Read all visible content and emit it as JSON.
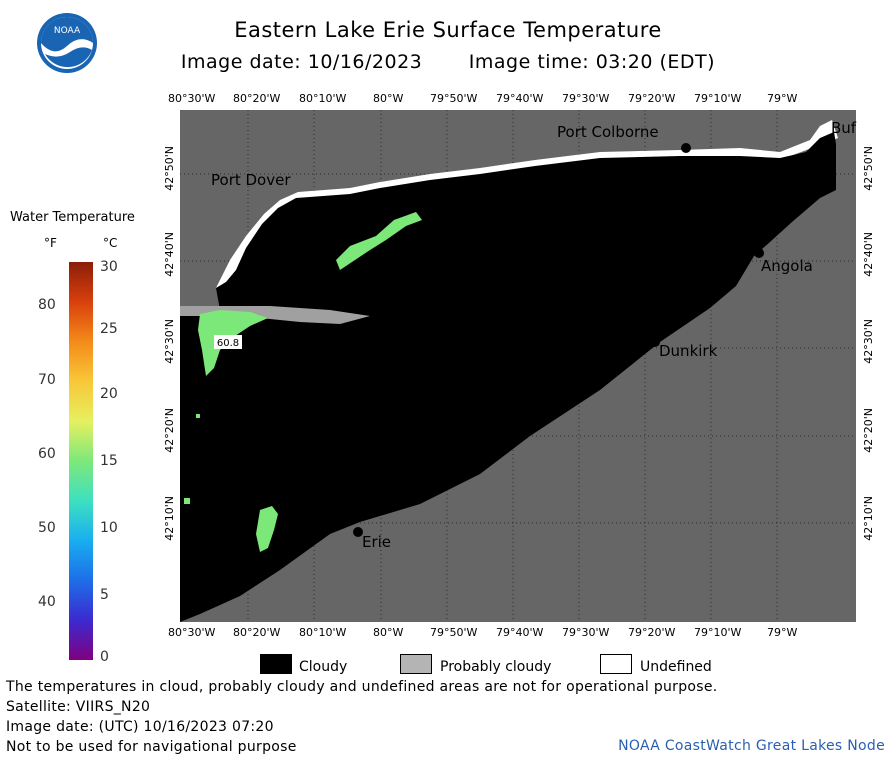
{
  "header": {
    "title": "Eastern Lake Erie Surface Temperature",
    "image_date": "Image date: 10/16/2023",
    "image_time": "Image time: 03:20 (EDT)"
  },
  "logo": {
    "text": "NOAA"
  },
  "map": {
    "lon_ticks": [
      "80°30'W",
      "80°20'W",
      "80°10'W",
      "80°W",
      "79°50'W",
      "79°40'W",
      "79°30'W",
      "79°20'W",
      "79°10'W",
      "79°W"
    ],
    "lat_ticks": [
      "42°50'N",
      "42°40'N",
      "42°30'N",
      "42°20'N",
      "42°10'N"
    ],
    "places": {
      "port_colborne": "Port Colborne",
      "port_dover": "Port Dover",
      "buffalo": "Buf",
      "angola": "Angola",
      "dunkirk": "Dunkirk",
      "erie": "Erie"
    },
    "station_reading": "60.8"
  },
  "legend": {
    "title": "Water Temperature",
    "unit_f": "°F",
    "unit_c": "°C",
    "f_labels": [
      "80",
      "70",
      "60",
      "50",
      "40"
    ],
    "c_labels": [
      "30",
      "25",
      "20",
      "15",
      "10",
      "5",
      "0"
    ],
    "colors": [
      "#800080",
      "#3c2ad0",
      "#1e6ee8",
      "#19aef0",
      "#3ee0c0",
      "#7de87a",
      "#e6f060",
      "#f8c838",
      "#f48a1a",
      "#d8400c",
      "#8a1e08"
    ]
  },
  "key": {
    "cloudy": "Cloudy",
    "probably_cloudy": "Probably cloudy",
    "undefined": "Undefined"
  },
  "footer": {
    "note": "The temperatures in cloud, probably cloudy and undefined areas are not for operational purpose.",
    "satellite": "Satellite: VIIRS_N20",
    "utc_date": "Image date: (UTC) 10/16/2023  07:20",
    "nav": "Not to be used for navigational purpose",
    "credit": "NOAA CoastWatch Great Lakes Node"
  }
}
